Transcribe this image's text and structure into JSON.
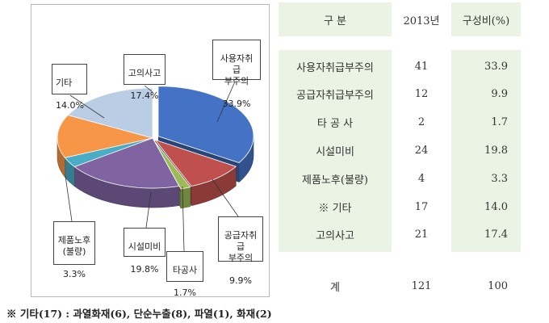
{
  "chart_data": {
    "type": "pie",
    "title": "",
    "slices": [
      {
        "label": "사용자취급\n부주의",
        "percent_text": "33.9%",
        "value": 33.9,
        "color": "#4472c4"
      },
      {
        "label": "공급자취급\n부주의",
        "percent_text": "9.9%",
        "value": 9.9,
        "color": "#c0504d"
      },
      {
        "label": "타공사",
        "percent_text": "1.7%",
        "value": 1.7,
        "color": "#9bbb59"
      },
      {
        "label": "시설미비",
        "percent_text": "19.8%",
        "value": 19.8,
        "color": "#8064a2"
      },
      {
        "label": "제품노후\n(불량)",
        "percent_text": "3.3%",
        "value": 3.3,
        "color": "#4bacc6"
      },
      {
        "label": "기타",
        "percent_text": "14.0%",
        "value": 14.0,
        "color": "#f79646"
      },
      {
        "label": "고의사고",
        "percent_text": "17.4%",
        "value": 17.4,
        "color": "#b9cde5"
      }
    ]
  },
  "table": {
    "headers": [
      "구  분",
      "2013년",
      "구성비(%)"
    ],
    "rows": [
      {
        "category": "사용자취급부주의",
        "count": "41",
        "ratio": "33.9"
      },
      {
        "category": "공급자취급부주의",
        "count": "12",
        "ratio": "9.9"
      },
      {
        "category": "타 공 사",
        "count": "2",
        "ratio": "1.7"
      },
      {
        "category": "시설미비",
        "count": "24",
        "ratio": "19.8"
      },
      {
        "category": "제품노후(불량)",
        "count": "4",
        "ratio": "3.3"
      },
      {
        "category": "※  기타",
        "count": "17",
        "ratio": "14.0"
      },
      {
        "category": "고의사고",
        "count": "21",
        "ratio": "17.4"
      }
    ],
    "total": {
      "category": "계",
      "count": "121",
      "ratio": "100"
    }
  },
  "footnote": "※  기타(17) : 과열화재(6), 단순누출(8), 파열(1), 화재(2)"
}
